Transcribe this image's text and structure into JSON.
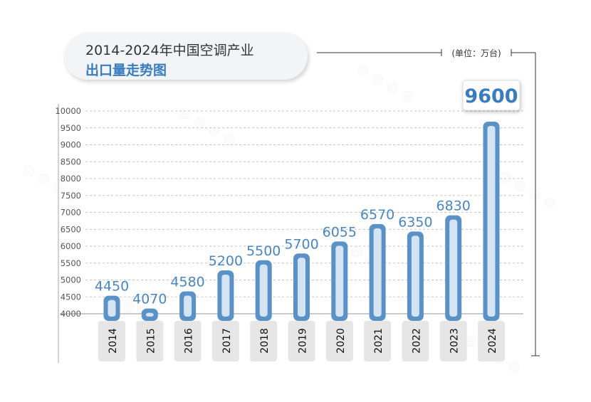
{
  "title": {
    "line1": "2014-2024年中国空调产业",
    "line2": "出口量走势图"
  },
  "colors": {
    "bar_outer": "#5a92c8",
    "bar_inner": "#d4e4f3",
    "value_label": "#4a86c0",
    "highlight_label": "#3a7cc0",
    "title_accent": "#3a7cc0"
  },
  "chart_data": {
    "type": "bar",
    "title": "2014-2024年中国空调产业出口量走势图",
    "unit_label": "(单位：万台)",
    "categories": [
      "2014",
      "2015",
      "2016",
      "2017",
      "2018",
      "2019",
      "2020",
      "2021",
      "2022",
      "2023",
      "2024"
    ],
    "values": [
      4450,
      4070,
      4580,
      5200,
      5500,
      5700,
      6055,
      6570,
      6350,
      6830,
      9600
    ],
    "yticks": [
      4000,
      4500,
      5000,
      5500,
      6000,
      6500,
      7000,
      7500,
      8000,
      8500,
      9000,
      9500,
      10000
    ],
    "ylim": [
      4000,
      10000
    ],
    "highlight": "2024",
    "grid": true,
    "xlabel": "",
    "ylabel": ""
  }
}
